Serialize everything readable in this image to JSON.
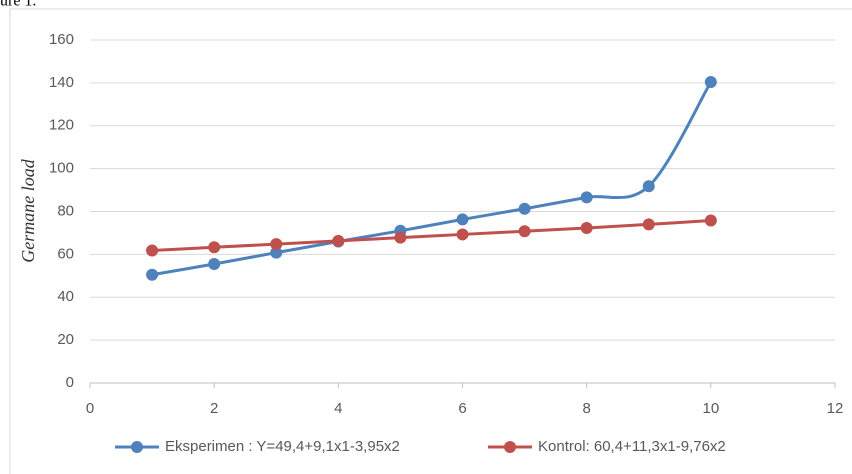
{
  "chart_data": {
    "type": "line",
    "annotation": "ure 1.",
    "ylabel": "Germane load",
    "x": [
      1,
      2,
      3,
      4,
      5,
      6,
      7,
      8,
      9,
      10
    ],
    "series": [
      {
        "name": "Eksperimen : Y=49,4+9,1x1-3,95x2",
        "color": "#4f81bd",
        "values": [
          50.5,
          55.5,
          60.8,
          66,
          71,
          76.3,
          81.3,
          86.6,
          91.8,
          140.4
        ]
      },
      {
        "name": "Kontrol: 60,4+11,3x1-9,76x2",
        "color": "#c0504d",
        "values": [
          61.8,
          63.3,
          64.8,
          66.3,
          67.8,
          69.3,
          70.8,
          72.3,
          74,
          75.8
        ]
      }
    ],
    "xlim": [
      0,
      12
    ],
    "xticks": [
      0,
      2,
      4,
      6,
      8,
      10,
      12
    ],
    "ylim": [
      0,
      160
    ],
    "yticks": [
      0,
      20,
      40,
      60,
      80,
      100,
      120,
      140,
      160
    ],
    "grid": true,
    "smooth": true,
    "legend": "bottom"
  }
}
